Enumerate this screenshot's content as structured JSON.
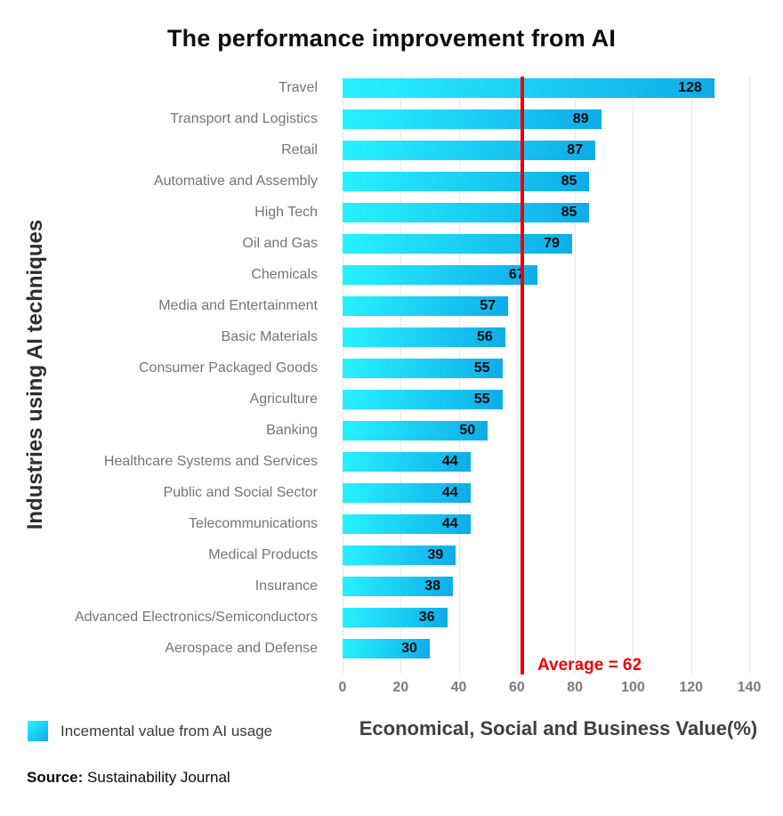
{
  "title": "The performance improvement from AI",
  "y_axis_title": "Industries using AI techniques",
  "x_axis_title": "Economical, Social and Business Value(%)",
  "legend": {
    "label": "Incemental value from AI usage"
  },
  "source": {
    "prefix": "Source:",
    "text": "Sustainability Journal"
  },
  "average": {
    "label": "Average = 62",
    "value": 62
  },
  "colors": {
    "bar_gradient_start": "#28F2FF",
    "bar_gradient_end": "#0EACE8",
    "average_line": "#EE0000",
    "category_label": "#757575",
    "tick_label": "#7b7b7b",
    "gridline": "#e7e7e7",
    "value_label": "#0a0a0a"
  },
  "chart_data": {
    "type": "bar",
    "orientation": "horizontal",
    "title": "The performance improvement from AI",
    "xlabel": "Economical, Social and Business Value(%)",
    "ylabel": "Industries using AI techniques",
    "categories": [
      "Travel",
      "Transport and Logistics",
      "Retail",
      "Automative and Assembly",
      "High Tech",
      "Oil and Gas",
      "Chemicals",
      "Media and Entertainment",
      "Basic Materials",
      "Consumer Packaged Goods",
      "Agriculture",
      "Banking",
      "Healthcare Systems and Services",
      "Public and Social Sector",
      "Telecommunications",
      "Medical Products",
      "Insurance",
      "Advanced Electronics/Semiconductors",
      "Aerospace and Defense"
    ],
    "values": [
      128,
      89,
      87,
      85,
      85,
      79,
      67,
      57,
      56,
      55,
      55,
      50,
      44,
      44,
      44,
      39,
      38,
      36,
      30
    ],
    "series_name": "Incemental value from AI usage",
    "x_ticks": [
      0,
      20,
      40,
      60,
      80,
      100,
      120,
      140
    ],
    "xlim": [
      0,
      140
    ],
    "average_line": 62,
    "grid": true,
    "legend_position": "bottom-left"
  }
}
